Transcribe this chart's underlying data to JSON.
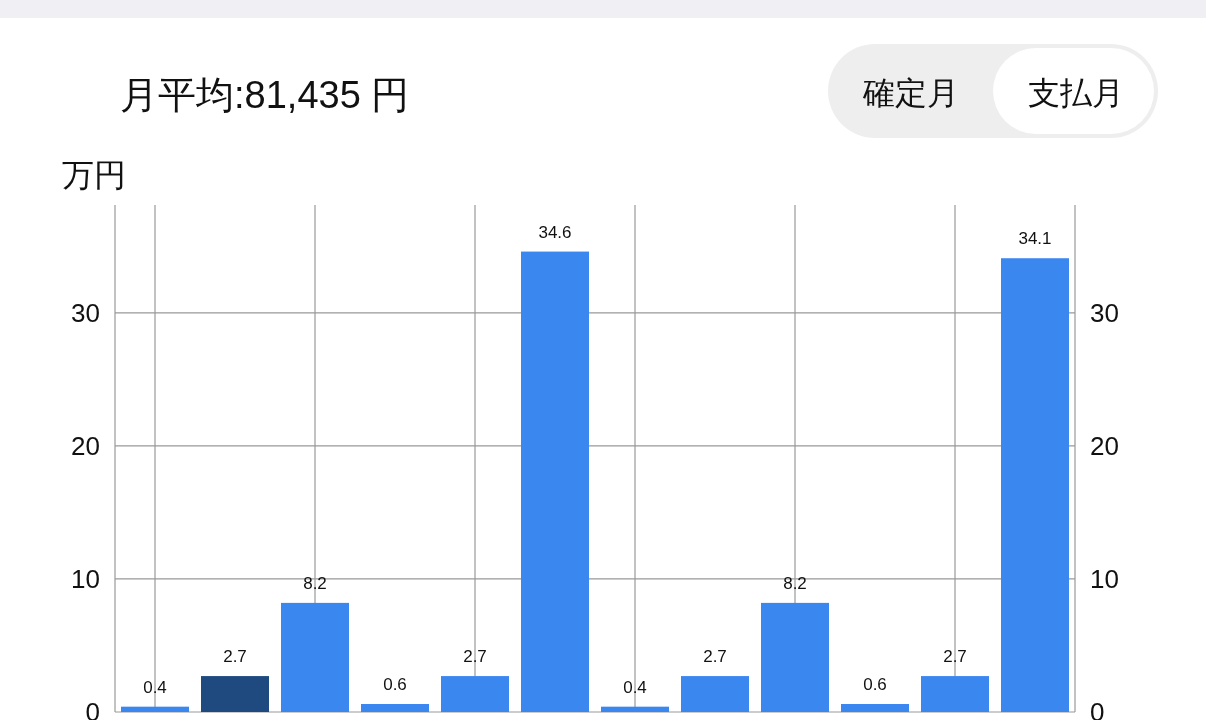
{
  "chart_data": {
    "type": "bar",
    "title": "月平均:81,435 円",
    "ylabel": "万円",
    "annotations": [
      "確定月",
      "支払月"
    ],
    "categories": [
      null,
      null,
      null,
      null,
      null,
      null,
      null,
      null,
      null,
      null,
      null,
      null
    ],
    "values": [
      0.4,
      2.7,
      8.2,
      0.6,
      2.7,
      34.6,
      0.4,
      2.7,
      8.2,
      0.6,
      2.7,
      34.1
    ],
    "colors": [
      "#3b87f0",
      "#1e4a80",
      "#3b87f0",
      "#3b87f0",
      "#3b87f0",
      "#3b87f0",
      "#3b87f0",
      "#3b87f0",
      "#3b87f0",
      "#3b87f0",
      "#3b87f0",
      "#3b87f0"
    ],
    "ylim": [
      0,
      38.1
    ],
    "yticks": [
      0,
      10,
      20,
      30
    ],
    "y2lim": [
      0,
      38.1
    ],
    "y2ticks": [
      0,
      10,
      20,
      30
    ],
    "grid": true,
    "data_labels": true
  }
}
